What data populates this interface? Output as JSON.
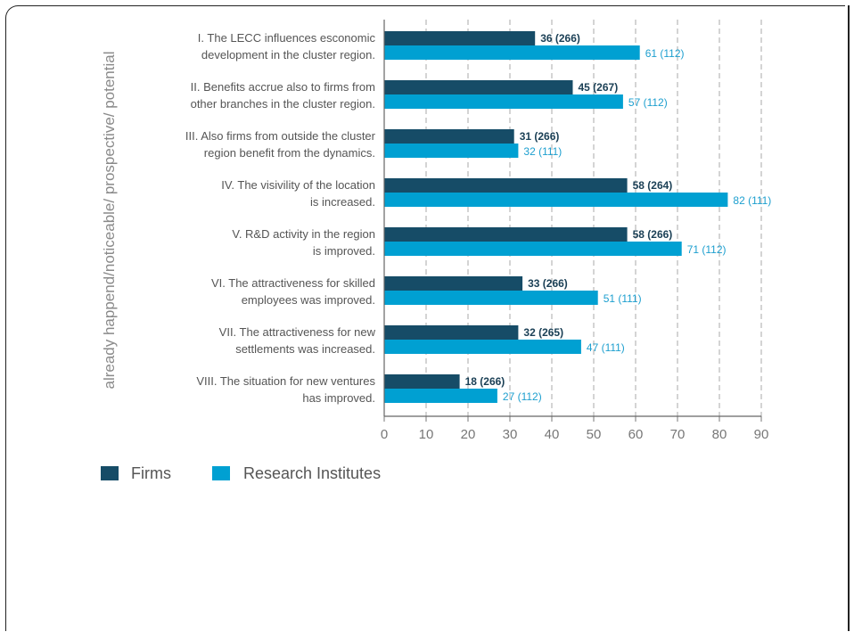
{
  "chart_data": {
    "type": "bar",
    "orientation": "horizontal",
    "ylabel": "already happend/noticeable/ prospective/ potential",
    "xlim": [
      0,
      90
    ],
    "xticks": [
      0,
      10,
      20,
      30,
      40,
      50,
      60,
      70,
      80,
      90
    ],
    "grid": "vertical dashed",
    "legend_position": "bottom-left",
    "categories": [
      [
        "I. The LECC influences esconomic",
        "development in the cluster region."
      ],
      [
        "II. Benefits accrue also to firms from",
        "other branches in the cluster region."
      ],
      [
        "III. Also firms from outside the cluster",
        "region benefit from the dynamics."
      ],
      [
        "IV. The visivility of the location",
        "is increased."
      ],
      [
        "V. R&D activity in the region",
        "is improved."
      ],
      [
        "VI. The attractiveness for skilled",
        "employees was improved."
      ],
      [
        "VII. The attractiveness for new",
        "settlements was increased."
      ],
      [
        "VIII. The situation for new ventures",
        "has improved."
      ]
    ],
    "series": [
      {
        "name": "Firms",
        "color": "#164c67",
        "values": [
          36,
          45,
          31,
          58,
          58,
          33,
          32,
          18
        ],
        "labels": [
          "36  (266)",
          "45 (267)",
          "31 (266)",
          "58 (264)",
          "58 (266)",
          "33 (266)",
          "32 (265)",
          "18 (266)"
        ]
      },
      {
        "name": "Research Institutes",
        "color": "#00a0d2",
        "values": [
          61,
          57,
          32,
          82,
          71,
          51,
          47,
          27
        ],
        "labels": [
          "61 (112)",
          "57 (112)",
          "32 (111)",
          "82 (111)",
          "71 (112)",
          "51 (111)",
          "47 (111)",
          "27 (112)"
        ]
      }
    ]
  }
}
